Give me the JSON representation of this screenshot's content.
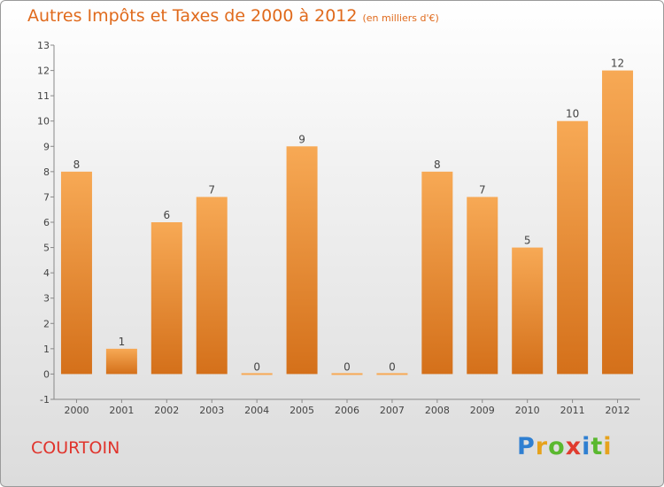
{
  "title": "Autres Impôts et Taxes de 2000 à 2012",
  "subtitle": "(en milliers d'€)",
  "commune": "COURTOIN",
  "brand": {
    "letters": [
      "P",
      "r",
      "o",
      "x",
      "i",
      "t",
      "i"
    ],
    "colors": [
      "#2f7fd1",
      "#e6a21c",
      "#5ab82f",
      "#e03c2f",
      "#2f7fd1",
      "#5ab82f",
      "#e6a21c"
    ]
  },
  "chart_data": {
    "type": "bar",
    "title": "Autres Impôts et Taxes de 2000 à 2012",
    "categories": [
      "2000",
      "2001",
      "2002",
      "2003",
      "2004",
      "2005",
      "2006",
      "2007",
      "2008",
      "2009",
      "2010",
      "2011",
      "2012"
    ],
    "values": [
      8,
      1,
      6,
      7,
      0,
      9,
      0,
      0,
      8,
      7,
      5,
      10,
      12
    ],
    "data_labels": [
      "8",
      "1",
      "6",
      "7",
      "0",
      "9",
      "0",
      "0",
      "8",
      "7",
      "5",
      "10",
      "12"
    ],
    "yticks": [
      "-1",
      "0",
      "1",
      "2",
      "3",
      "4",
      "5",
      "6",
      "7",
      "8",
      "9",
      "10",
      "11",
      "12",
      "13"
    ],
    "ylim": [
      -1,
      13
    ],
    "grid": false,
    "colors": {
      "bar_light": "#f7a955",
      "bar_dark": "#d4701a",
      "axis": "#888888"
    }
  }
}
